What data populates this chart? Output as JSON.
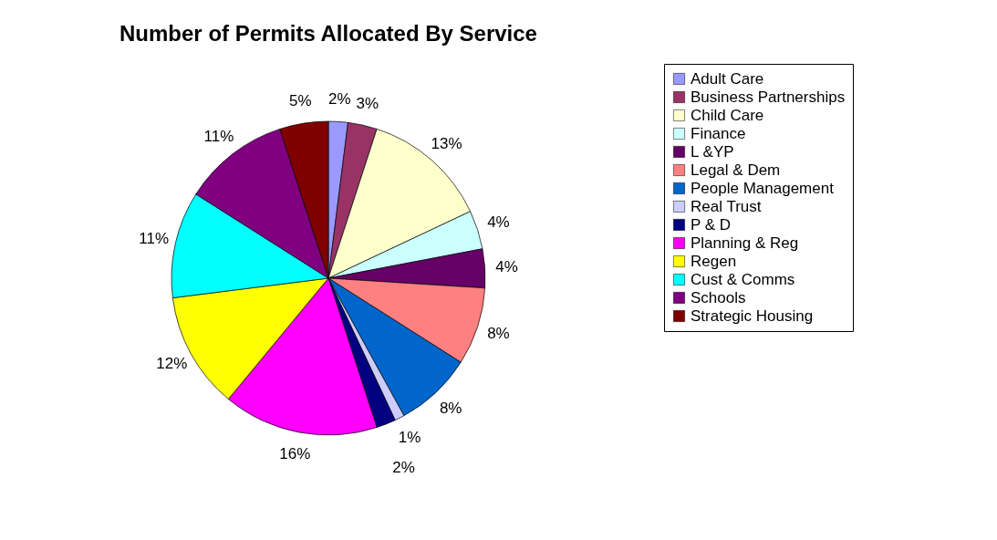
{
  "chart_data": {
    "type": "pie",
    "title": "Number of Permits Allocated By Service",
    "categories": [
      "Adult Care",
      "Business Partnerships",
      "Child Care",
      "Finance",
      "L &YP",
      "Legal & Dem",
      "People Management",
      "Real Trust",
      "P & D",
      "Planning & Reg",
      "Regen",
      "Cust & Comms",
      "Schools",
      "Strategic Housing"
    ],
    "values": [
      2,
      3,
      13,
      4,
      4,
      8,
      8,
      1,
      2,
      16,
      12,
      11,
      11,
      5
    ],
    "colors": [
      "#9999ff",
      "#993366",
      "#ffffcc",
      "#ccffff",
      "#660066",
      "#ff8080",
      "#0066cc",
      "#ccccff",
      "#000080",
      "#ff00ff",
      "#ffff00",
      "#00ffff",
      "#800080",
      "#800000"
    ],
    "value_labels": [
      "2%",
      "3%",
      "13%",
      "4%",
      "4%",
      "8%",
      "8%",
      "1%",
      "2%",
      "16%",
      "12%",
      "11%",
      "11%",
      "5%"
    ],
    "legend": "right"
  }
}
